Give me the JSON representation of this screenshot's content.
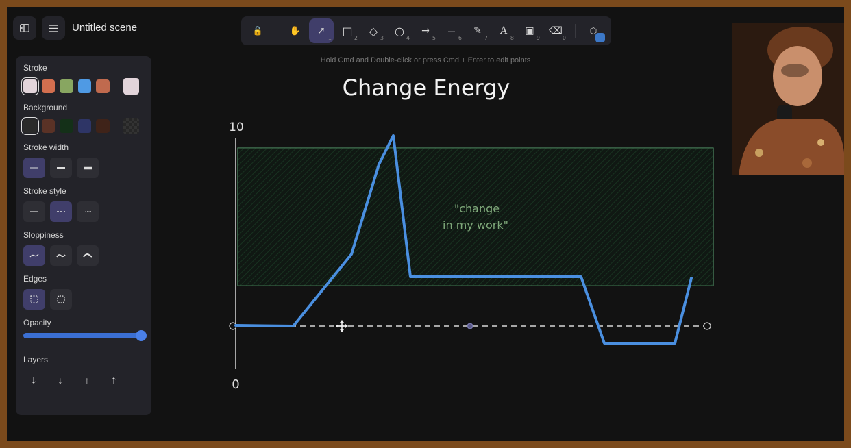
{
  "topbar": {
    "scene_title": "Untitled scene"
  },
  "toolbar": {
    "tools": [
      {
        "name": "lock-icon",
        "glyph": "🔓",
        "num": ""
      },
      {
        "name": "hand-icon",
        "glyph": "✋",
        "num": ""
      },
      {
        "name": "select-icon",
        "glyph": "➚",
        "num": "1"
      },
      {
        "name": "rectangle-icon",
        "glyph": "□",
        "num": "2"
      },
      {
        "name": "diamond-icon",
        "glyph": "◇",
        "num": "3"
      },
      {
        "name": "ellipse-icon",
        "glyph": "○",
        "num": "4"
      },
      {
        "name": "arrow-icon",
        "glyph": "→",
        "num": "5"
      },
      {
        "name": "line-icon",
        "glyph": "—",
        "num": "6"
      },
      {
        "name": "pencil-icon",
        "glyph": "✎",
        "num": "7"
      },
      {
        "name": "text-icon",
        "glyph": "A",
        "num": "8"
      },
      {
        "name": "image-icon",
        "glyph": "▣",
        "num": "9"
      },
      {
        "name": "eraser-icon",
        "glyph": "⌫",
        "num": "0"
      },
      {
        "name": "shapes-library-icon",
        "glyph": "⬡",
        "num": ""
      }
    ],
    "active_tool": "select-icon"
  },
  "hint": "Hold Cmd and Double-click or press Cmd + Enter to edit points",
  "panel": {
    "stroke_label": "Stroke",
    "stroke_colors": [
      "#e2d4da",
      "#d36f4f",
      "#88a661",
      "#4f9ae4",
      "#c06a4e"
    ],
    "stroke_current": "#e2d4da",
    "background_label": "Background",
    "background_colors": [
      "#2a2a2a",
      "#5a3226",
      "#143018",
      "#2e3566",
      "#3f2319"
    ],
    "stroke_width_label": "Stroke width",
    "stroke_style_label": "Stroke style",
    "sloppiness_label": "Sloppiness",
    "edges_label": "Edges",
    "opacity_label": "Opacity",
    "opacity_value": 100,
    "layers_label": "Layers"
  },
  "canvas": {
    "title": "Change Energy",
    "axis_top": "10",
    "axis_bottom": "0",
    "note_line1": "\"change",
    "note_line2": "in my work\"",
    "colors": {
      "curve": "#4a8fe0",
      "box_stroke": "#4f8a62",
      "box_fill": "#0f2418",
      "axis": "#d8d8d8",
      "note": "#7fa87a"
    }
  }
}
